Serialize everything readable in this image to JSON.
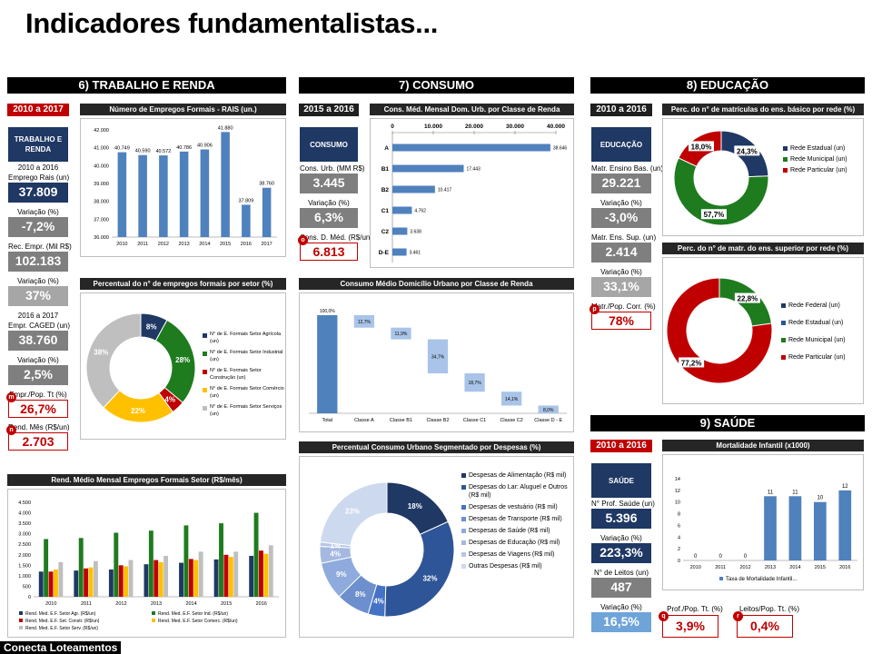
{
  "title": "Indicadores fundamentalistas...",
  "brand": "Conecta Loteamentos",
  "colors": {
    "navy": "#1f3864",
    "red": "#c00000",
    "green": "#1e7b1e",
    "blue": "#4f81bd"
  },
  "trabalho": {
    "header": "6) TRABALHO E RENDA",
    "period": "2010 a 2017",
    "category": "TRABALHO E RENDA",
    "kpis": [
      {
        "label_pre": "2010 a 2016",
        "label": "Emprego Rais (un)",
        "value": "37.809",
        "style": "navy"
      },
      {
        "label": "Variação (%)",
        "value": "-7,2%",
        "style": "grey"
      },
      {
        "label": "Rec. Empr. (Mil R$)",
        "value": "102.183",
        "style": "grey"
      },
      {
        "label": "Variação (%)",
        "value": "37%",
        "style": "lgrey"
      },
      {
        "label_pre": "2016 a 2017",
        "label": "Empr. CAGED (un)",
        "value": "38.760",
        "style": "grey"
      },
      {
        "label": "Variação (%)",
        "value": "2,5%",
        "style": "grey"
      },
      {
        "label": "Empr./Pop. Tt (%)",
        "value": "26,7%",
        "style": "red",
        "marker": "m"
      },
      {
        "label": "Rend. Mês (R$/un)",
        "value": "2.703",
        "style": "red",
        "marker": "n"
      }
    ]
  },
  "consumo": {
    "header": "7) CONSUMO",
    "period": "2015 a 2016",
    "category": "CONSUMO",
    "kpis": [
      {
        "label": "Cons. Urb. (MM R$)",
        "value": "3.445",
        "style": "grey"
      },
      {
        "label": "Variação (%)",
        "value": "6,3%",
        "style": "grey"
      },
      {
        "label": "Cons. D. Méd. (R$/un)",
        "value": "6.813",
        "style": "red",
        "marker": "o"
      }
    ]
  },
  "educacao": {
    "header": "8) EDUCAÇÃO",
    "period": "2010 a 2016",
    "category": "EDUCAÇÃO",
    "kpis": [
      {
        "label": "Matr. Ensino Bas. (un)",
        "value": "29.221",
        "style": "grey"
      },
      {
        "label": "Variação (%)",
        "value": "-3,0%",
        "style": "grey"
      },
      {
        "label": "Matr. Ens. Sup. (un)",
        "value": "2.414",
        "style": "grey"
      },
      {
        "label": "Variação (%)",
        "value": "33,1%",
        "style": "lgrey"
      },
      {
        "label": "Matr./Pop. Corr. (%)",
        "value": "78%",
        "style": "red",
        "marker": "p"
      }
    ]
  },
  "saude": {
    "header": "9) SAÚDE",
    "period": "2010 a 2016",
    "category": "SAÚDE",
    "kpis": [
      {
        "label": "N° Prof. Saúde (un)",
        "value": "5.396",
        "style": "navy"
      },
      {
        "label": "Variação (%)",
        "value": "223,3%",
        "style": "navy"
      },
      {
        "label": "N° de Leitos (un)",
        "value": "487",
        "style": "grey"
      },
      {
        "label": "Variação (%)",
        "value": "16,5%",
        "style": "lblue"
      }
    ],
    "bottom": [
      {
        "label": "Prof./Pop. Tt. (%)",
        "value": "3,9%",
        "marker": "q"
      },
      {
        "label": "Leitos/Pop. Tt. (%)",
        "value": "0,4%",
        "marker": "r"
      }
    ]
  },
  "chart_data": [
    {
      "id": "empregos",
      "type": "bar",
      "title": "Número de Empregos Formais - RAIS (un.)",
      "categories": [
        "2010",
        "2011",
        "2012",
        "2013",
        "2014",
        "2015",
        "2016",
        "2017"
      ],
      "values": [
        40749,
        40590,
        40572,
        40786,
        40906,
        41880,
        37809,
        38760
      ],
      "labels": [
        "40.749",
        "40.590",
        "40.572",
        "40.786",
        "40.906",
        "41.880",
        "37.809",
        "38.760"
      ],
      "ylim": [
        36000,
        42000
      ],
      "yticks": [
        36000,
        37000,
        38000,
        39000,
        40000,
        41000,
        42000
      ],
      "ytick_labels": [
        "36.000",
        "37.000",
        "38.000",
        "39.000",
        "40.000",
        "41.000",
        "42.000"
      ],
      "color": "#4f81bd"
    },
    {
      "id": "setor",
      "type": "pie",
      "title": "Percentual do n° de empregos formais por setor (%)",
      "slices": [
        {
          "name": "N° de E. Formais Setor Agrícola (un)",
          "value": 8,
          "label": "8%",
          "color": "#1f3864"
        },
        {
          "name": "N° de E. Formais Setor Industrial (un)",
          "value": 28,
          "label": "28%",
          "color": "#1e7b1e"
        },
        {
          "name": "N° de E. Formais Setor Construção (un)",
          "value": 4,
          "label": "4%",
          "color": "#c00000"
        },
        {
          "name": "N° de E. Formais Setor Comércio (un)",
          "value": 22,
          "label": "22%",
          "color": "#ffc000"
        },
        {
          "name": "N° de E. Formais Setor Serviços (un)",
          "value": 38,
          "label": "38%",
          "color": "#bfbfbf"
        }
      ]
    },
    {
      "id": "rendimento",
      "type": "bar",
      "title": "Rend. Médio Mensal Empregos Formais Setor (R$/mês)",
      "categories": [
        "2010",
        "2011",
        "2012",
        "2013",
        "2014",
        "2015",
        "2016"
      ],
      "series": [
        {
          "name": "Rend. Med. E.F. Setor Agr. (R$/un)",
          "color": "#1f3864",
          "values": [
            1200,
            1250,
            1300,
            1550,
            1620,
            1780,
            1950
          ]
        },
        {
          "name": "Rend. Med. E.F. Setor Ind. (R$/un)",
          "color": "#1e7b1e",
          "values": [
            2750,
            2800,
            3050,
            3150,
            3400,
            3500,
            4000
          ]
        },
        {
          "name": "Rend. Med. E.F. Set. Constr. (R$/un)",
          "color": "#c00000",
          "values": [
            1200,
            1350,
            1500,
            1750,
            1800,
            2000,
            2200
          ]
        },
        {
          "name": "Rend. Med. E.F. Setor Comerc. (R$/un)",
          "color": "#ffc000",
          "values": [
            1300,
            1400,
            1450,
            1650,
            1750,
            1900,
            2050
          ]
        },
        {
          "name": "Rend. Med. E.F. Setor Serv. (R$/un)",
          "color": "#bfbfbf",
          "values": [
            1650,
            1700,
            1750,
            1950,
            2150,
            2150,
            2450
          ]
        }
      ],
      "ylim": [
        0,
        4500
      ],
      "yticks": [
        0,
        500,
        1000,
        1500,
        2000,
        2500,
        3000,
        3500,
        4000,
        4500
      ],
      "ytick_labels": [
        "0",
        "500",
        "1.000",
        "1.500",
        "2.000",
        "2.500",
        "3.000",
        "3.500",
        "4.000",
        "4.500"
      ]
    },
    {
      "id": "classe",
      "type": "bar",
      "orientation": "horizontal",
      "title": "Cons. Méd. Mensal Dom. Urb. por Classe de Renda",
      "categories": [
        "A",
        "B1",
        "B2",
        "C1",
        "C2",
        "D-E"
      ],
      "values": [
        38646,
        17443,
        10417,
        4762,
        3638,
        3461
      ],
      "labels": [
        "38.646",
        "17.443",
        "10.417",
        "4.762",
        "3.638",
        "3.461"
      ],
      "xlim": [
        0,
        40000
      ],
      "xticks": [
        0,
        10000,
        20000,
        30000,
        40000
      ],
      "xtick_labels": [
        "0",
        "10.000",
        "20.000",
        "30.000",
        "40.000"
      ],
      "color": "#4f81bd"
    },
    {
      "id": "waterfall",
      "type": "bar",
      "subtype": "waterfall",
      "title": "Consumo Médio Domicílio Urbano por Classe de Renda",
      "categories": [
        "Total",
        "Classe A",
        "Classe B1",
        "Classe B2",
        "Classe C1",
        "Classe C2",
        "Classe D - E"
      ],
      "values": [
        100.0,
        12.7,
        11.9,
        34.7,
        18.7,
        14.1,
        8.0
      ],
      "labels": [
        "100,0%",
        "12,7%",
        "11,9%",
        "34,7%",
        "18,7%",
        "14,1%",
        "8,0%"
      ]
    },
    {
      "id": "despesas",
      "type": "pie",
      "title": "Percentual Consumo Urbano Segmentado por Despesas (%)",
      "slices": [
        {
          "name": "Despesas de Alimentação (R$ mil)",
          "value": 18,
          "label": "18%",
          "color": "#1f3864"
        },
        {
          "name": "Despesas do Lar: Aluguel e Outros (R$ mil)",
          "value": 32,
          "label": "32%",
          "color": "#2e5597"
        },
        {
          "name": "Despesas de vestuário (R$ mil)",
          "value": 4,
          "label": "4%",
          "color": "#4472c4"
        },
        {
          "name": "Despesas de Transporte (R$ mil)",
          "value": 8,
          "label": "8%",
          "color": "#6d8fcd"
        },
        {
          "name": "Despesas de Saúde (R$ mil)",
          "value": 9,
          "label": "9%",
          "color": "#8faadc"
        },
        {
          "name": "Despesas de Educação (R$ mil)",
          "value": 4,
          "label": "4%",
          "color": "#a5b9e0"
        },
        {
          "name": "Despesas de Viagens (R$ mil)",
          "value": 1,
          "label": "1%",
          "color": "#b4c7e7"
        },
        {
          "name": "Outras Despesas (R$ mil)",
          "value": 23,
          "label": "23%",
          "color": "#cdd9ee"
        }
      ]
    },
    {
      "id": "basico",
      "type": "pie",
      "title": "Perc. do n° de matrículas do ens. básico por rede (%)",
      "slices": [
        {
          "name": "Rede Estadual (un)",
          "value": 24.3,
          "label": "24,3%",
          "color": "#1f3864"
        },
        {
          "name": "Rede Municipal (un)",
          "value": 57.7,
          "label": "57,7%",
          "color": "#1e7b1e"
        },
        {
          "name": "Rede Particular (un)",
          "value": 18.0,
          "label": "18,0%",
          "color": "#c00000"
        }
      ]
    },
    {
      "id": "superior",
      "type": "pie",
      "title": "Perc. do n° de matr. do ens. superior por rede (%)",
      "slices": [
        {
          "name": "Rede Federal (un)",
          "value": 0.0,
          "label": "0,0%",
          "color": "#1f3864"
        },
        {
          "name": "Rede Estadual (un)",
          "value": 0.0,
          "label": "",
          "color": "#2e5597"
        },
        {
          "name": "Rede Municipal (un)",
          "value": 22.8,
          "label": "22,8%",
          "color": "#1e7b1e"
        },
        {
          "name": "Rede Particular (un)",
          "value": 77.2,
          "label": "77,2%",
          "color": "#c00000"
        }
      ]
    },
    {
      "id": "mortalidade",
      "type": "bar",
      "title": "Mortalidade Infantil (x1000)",
      "categories": [
        "2010",
        "2011",
        "2012",
        "2013",
        "2014",
        "2015",
        "2016"
      ],
      "values": [
        0,
        0,
        0,
        11,
        11,
        10,
        12
      ],
      "labels": [
        "0",
        "0",
        "0",
        "11",
        "11",
        "10",
        "12"
      ],
      "ylim": [
        0,
        14
      ],
      "yticks": [
        0,
        2,
        4,
        6,
        8,
        10,
        12,
        14
      ],
      "ytick_labels": [
        "0",
        "2",
        "4",
        "6",
        "8",
        "10",
        "12",
        "14"
      ],
      "legend": "Taxa de Mortalidade Infantil...",
      "color": "#4f81bd"
    }
  ]
}
